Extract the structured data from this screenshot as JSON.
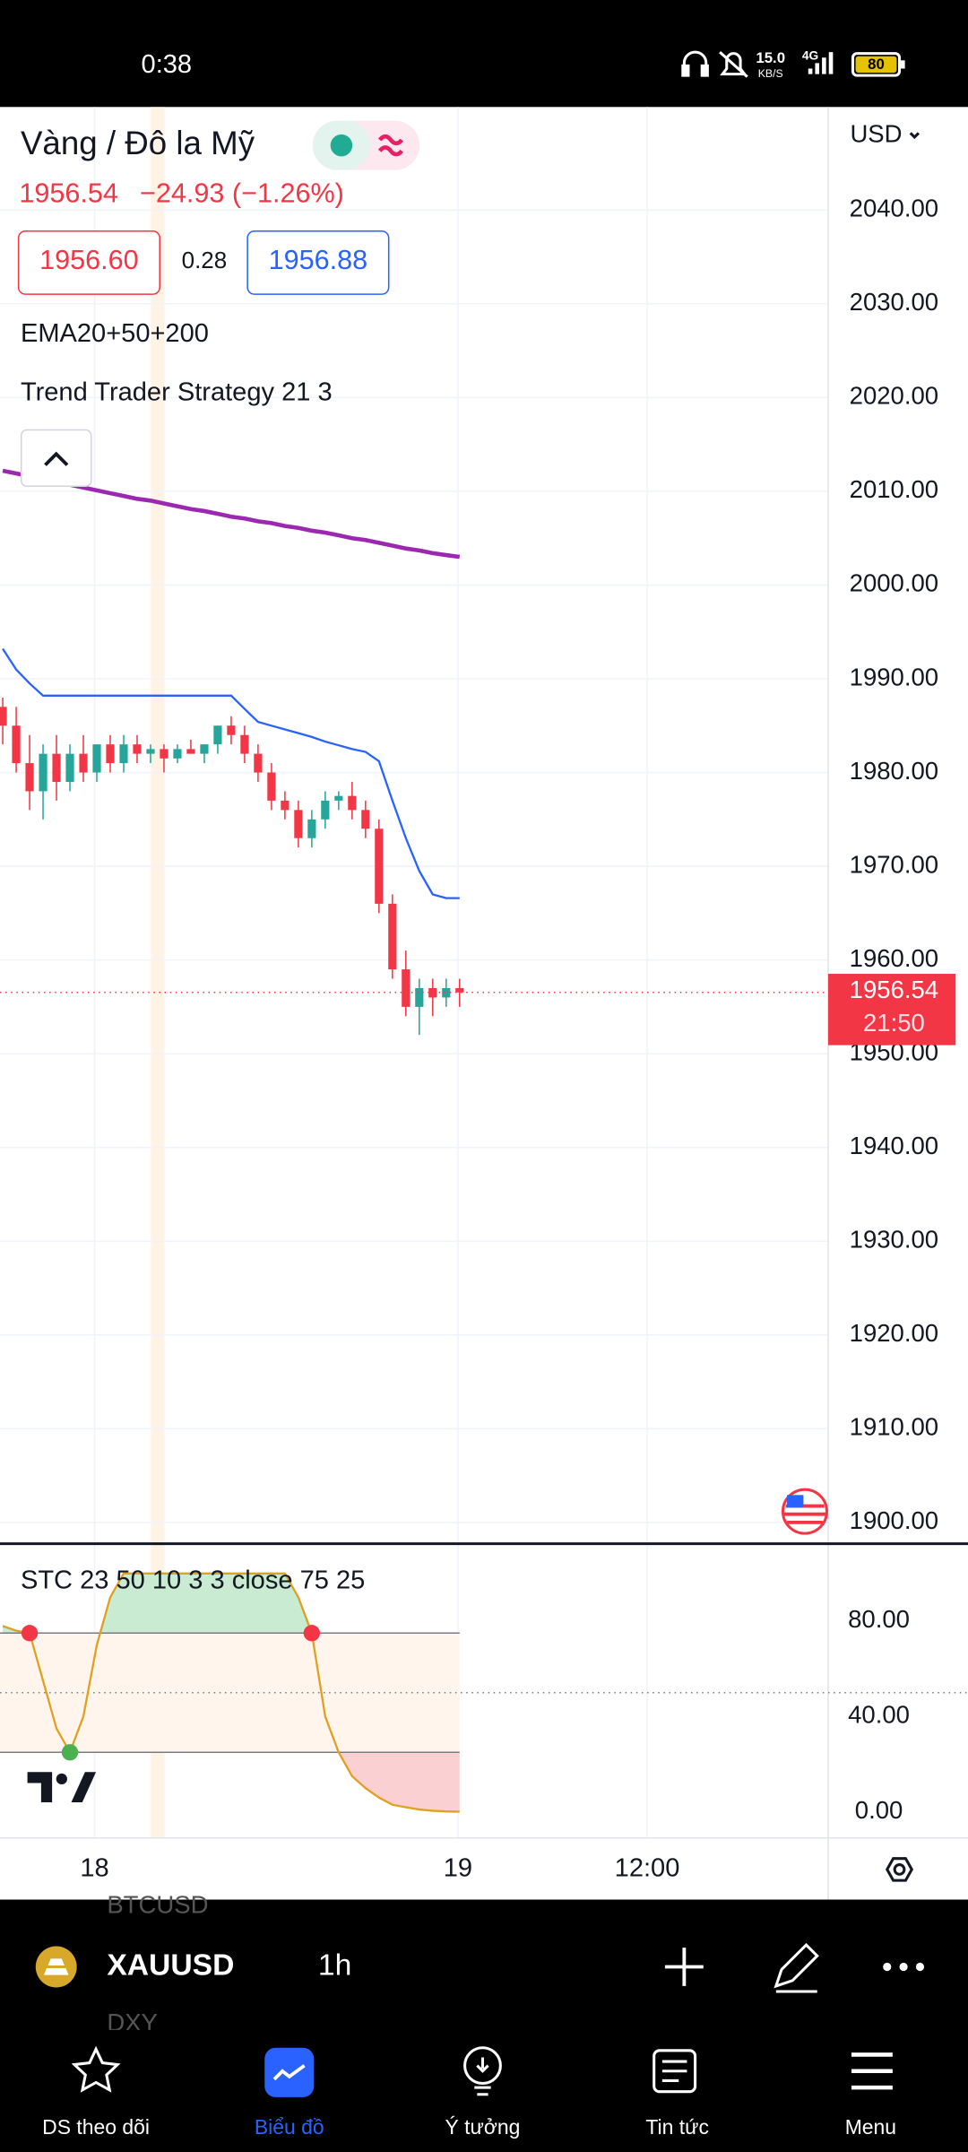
{
  "status_bar": {
    "time": "0:38",
    "speed": "15.0",
    "speed_unit": "KB/S",
    "network": "4G",
    "battery": "80"
  },
  "header": {
    "symbol_name": "Vàng / Đô la Mỹ",
    "quote": "1956.54",
    "change": "−24.93 (−1.26%)",
    "bid": "1956.60",
    "spread": "0.28",
    "ask": "1956.88",
    "currency": "USD"
  },
  "indicators": [
    "EMA20+50+200",
    "Trend Trader Strategy 21 3"
  ],
  "chart": {
    "type": "candlestick",
    "ylim": [
      1897.8,
      2051.0
    ],
    "yticks": [
      {
        "value": 2040,
        "label": "2040.00"
      },
      {
        "value": 2030,
        "label": "2030.00"
      },
      {
        "value": 2020,
        "label": "2020.00"
      },
      {
        "value": 2010,
        "label": "2010.00"
      },
      {
        "value": 2000,
        "label": "2000.00"
      },
      {
        "value": 1990,
        "label": "1990.00"
      },
      {
        "value": 1980,
        "label": "1980.00"
      },
      {
        "value": 1970,
        "label": "1970.00"
      },
      {
        "value": 1960,
        "label": "1960.00"
      },
      {
        "value": 1950,
        "label": "1950.00"
      },
      {
        "value": 1940,
        "label": "1940.00"
      },
      {
        "value": 1930,
        "label": "1930.00"
      },
      {
        "value": 1920,
        "label": "1920.00"
      },
      {
        "value": 1910,
        "label": "1910.00"
      },
      {
        "value": 1900,
        "label": "1900.00"
      }
    ],
    "up_color": "#26a69a",
    "down_color": "#f23645",
    "ema_color": "#9c27b0",
    "trend_color": "#2962ff",
    "last_price": {
      "value": 1956.54,
      "label": "1956.54",
      "countdown": "21:50"
    },
    "candles": [
      {
        "open": 1987,
        "high": 1988,
        "low": 1983,
        "close": 1985
      },
      {
        "open": 1985,
        "high": 1987,
        "low": 1980,
        "close": 1981
      },
      {
        "open": 1981,
        "high": 1984,
        "low": 1976,
        "close": 1978
      },
      {
        "open": 1978,
        "high": 1983,
        "low": 1975,
        "close": 1982
      },
      {
        "open": 1982,
        "high": 1984,
        "low": 1977,
        "close": 1979
      },
      {
        "open": 1979,
        "high": 1983,
        "low": 1978,
        "close": 1982
      },
      {
        "open": 1982,
        "high": 1984,
        "low": 1979,
        "close": 1980
      },
      {
        "open": 1980,
        "high": 1983,
        "low": 1979,
        "close": 1983
      },
      {
        "open": 1983,
        "high": 1984,
        "low": 1980,
        "close": 1981
      },
      {
        "open": 1981,
        "high": 1984,
        "low": 1980,
        "close": 1983
      },
      {
        "open": 1983,
        "high": 1984,
        "low": 1981,
        "close": 1982
      },
      {
        "open": 1982,
        "high": 1983,
        "low": 1981,
        "close": 1982.5
      },
      {
        "open": 1982.5,
        "high": 1983,
        "low": 1980,
        "close": 1981.5
      },
      {
        "open": 1981.5,
        "high": 1983,
        "low": 1981,
        "close": 1982.5
      },
      {
        "open": 1982.5,
        "high": 1983.5,
        "low": 1982,
        "close": 1982
      },
      {
        "open": 1982,
        "high": 1983,
        "low": 1981,
        "close": 1983
      },
      {
        "open": 1983,
        "high": 1985,
        "low": 1982,
        "close": 1985
      },
      {
        "open": 1985,
        "high": 1986,
        "low": 1983,
        "close": 1984
      },
      {
        "open": 1984,
        "high": 1985,
        "low": 1981,
        "close": 1982
      },
      {
        "open": 1982,
        "high": 1983,
        "low": 1979,
        "close": 1980
      },
      {
        "open": 1980,
        "high": 1981,
        "low": 1976,
        "close": 1977
      },
      {
        "open": 1977,
        "high": 1978,
        "low": 1975,
        "close": 1976
      },
      {
        "open": 1976,
        "high": 1977,
        "low": 1972,
        "close": 1973
      },
      {
        "open": 1973,
        "high": 1976,
        "low": 1972,
        "close": 1975
      },
      {
        "open": 1975,
        "high": 1978,
        "low": 1974,
        "close": 1977
      },
      {
        "open": 1977,
        "high": 1978,
        "low": 1976,
        "close": 1977.5
      },
      {
        "open": 1977.5,
        "high": 1979,
        "low": 1975,
        "close": 1976
      },
      {
        "open": 1976,
        "high": 1977,
        "low": 1973,
        "close": 1974
      },
      {
        "open": 1974,
        "high": 1975,
        "low": 1965,
        "close": 1966
      },
      {
        "open": 1966,
        "high": 1967,
        "low": 1958,
        "close": 1959
      },
      {
        "open": 1959,
        "high": 1961,
        "low": 1954,
        "close": 1955
      },
      {
        "open": 1955,
        "high": 1958,
        "low": 1952,
        "close": 1957
      },
      {
        "open": 1957,
        "high": 1958,
        "low": 1954,
        "close": 1956
      },
      {
        "open": 1956,
        "high": 1958,
        "low": 1955,
        "close": 1957
      },
      {
        "open": 1957,
        "high": 1958,
        "low": 1955,
        "close": 1956.54
      }
    ],
    "ema": [
      2012.2,
      2011.9,
      2011.6,
      2011.3,
      2011.0,
      2010.7,
      2010.4,
      2010.1,
      2009.8,
      2009.5,
      2009.2,
      2009.0,
      2008.7,
      2008.4,
      2008.1,
      2007.9,
      2007.6,
      2007.3,
      2007.1,
      2006.8,
      2006.6,
      2006.3,
      2006.1,
      2005.8,
      2005.6,
      2005.3,
      2005.0,
      2004.8,
      2004.5,
      2004.2,
      2003.9,
      2003.7,
      2003.4,
      2003.2,
      2003.0
    ],
    "trend": [
      1993.2,
      1991.0,
      1989.5,
      1988.2,
      1988.2,
      1988.2,
      1988.2,
      1988.2,
      1988.2,
      1988.2,
      1988.2,
      1988.2,
      1988.2,
      1988.2,
      1988.2,
      1988.2,
      1988.2,
      1988.2,
      1986.8,
      1985.4,
      1985.0,
      1984.6,
      1984.2,
      1983.8,
      1983.3,
      1982.9,
      1982.5,
      1982.2,
      1981.2,
      1977.0,
      1973.0,
      1969.5,
      1967.0,
      1966.6,
      1966.6
    ],
    "x_labels": [
      "18",
      "19",
      "12:00"
    ]
  },
  "stc": {
    "title": "STC 23 50 10 3 3 close 75 25",
    "ylim": [
      -10.9,
      112.2
    ],
    "yticks": [
      {
        "value": 80,
        "label": "80.00"
      },
      {
        "value": 40,
        "label": "40.00"
      },
      {
        "value": 0,
        "label": "0.00"
      }
    ],
    "levels": [
      75,
      25
    ],
    "midline": 50,
    "color": "#e0a020",
    "values": [
      78,
      76,
      75,
      55,
      35,
      25,
      40,
      70,
      90,
      100,
      100,
      100,
      100,
      100,
      100,
      100,
      100,
      100,
      100,
      100,
      100,
      100,
      90,
      75,
      40,
      25,
      15,
      10,
      6,
      3,
      2,
      1,
      0.5,
      0.2,
      0.1
    ]
  },
  "toolbar": {
    "symbol": "XAUUSD",
    "interval": "1h",
    "hidden_above": "BTCUSD",
    "hidden_below": "DXY"
  },
  "nav": [
    "DS theo dõi",
    "Biểu đồ",
    "Ý tưởng",
    "Tin tức",
    "Menu"
  ]
}
